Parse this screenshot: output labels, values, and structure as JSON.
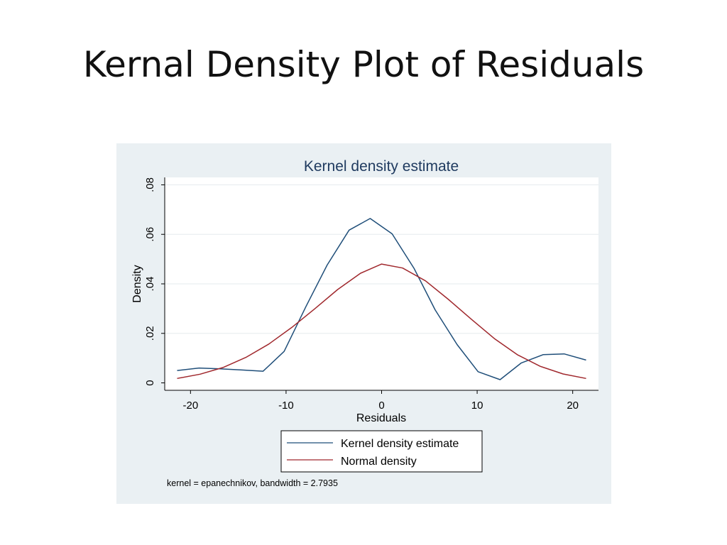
{
  "slide": {
    "title": "Kernal Density Plot of Residuals"
  },
  "chart_data": {
    "type": "line",
    "title": "Kernel density estimate",
    "xlabel": "Residuals",
    "ylabel": "Density",
    "xlim": [
      -22.7,
      22.7
    ],
    "ylim": [
      -0.003,
      0.083
    ],
    "xticks": [
      -20,
      -10,
      0,
      10,
      20
    ],
    "xtick_labels": [
      "-20",
      "-10",
      "0",
      "10",
      "20"
    ],
    "yticks": [
      0,
      0.02,
      0.04,
      0.06,
      0.08
    ],
    "ytick_labels": [
      "0",
      ".02",
      ".04",
      ".06",
      ".08"
    ],
    "grid": "horizontal",
    "legend_position": "bottom",
    "note": "kernel = epanechnikov, bandwidth = 2.7935",
    "series": [
      {
        "name": "Kernel density estimate",
        "color": "#1f4e79",
        "x": [
          -21.4,
          -19.1,
          -16.9,
          -14.6,
          -12.4,
          -10.2,
          -7.9,
          -5.7,
          -3.4,
          -1.2,
          1.1,
          3.4,
          5.6,
          7.9,
          10.1,
          12.4,
          14.6,
          16.9,
          19.1,
          21.4
        ],
        "y": [
          0.005,
          0.006,
          0.0057,
          0.0052,
          0.0047,
          0.0127,
          0.031,
          0.0476,
          0.0617,
          0.0664,
          0.0602,
          0.0462,
          0.0295,
          0.0155,
          0.0045,
          0.0013,
          0.008,
          0.0114,
          0.0117,
          0.0092
        ]
      },
      {
        "name": "Normal density",
        "color": "#a0282d",
        "x": [
          -21.4,
          -19.0,
          -16.6,
          -14.2,
          -11.8,
          -9.4,
          -7.0,
          -4.6,
          -2.2,
          0,
          2.2,
          4.6,
          7.0,
          9.4,
          11.8,
          14.2,
          16.6,
          19.0,
          21.4
        ],
        "y": [
          0.0018,
          0.0035,
          0.0062,
          0.0103,
          0.0157,
          0.0224,
          0.0299,
          0.0377,
          0.0443,
          0.048,
          0.0464,
          0.0412,
          0.0337,
          0.0257,
          0.0179,
          0.0114,
          0.0067,
          0.0036,
          0.0018
        ]
      }
    ]
  }
}
